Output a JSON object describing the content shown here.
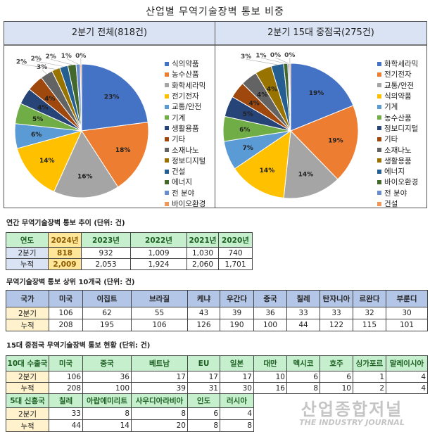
{
  "title": "산업별 무역기술장벽 통보 비중",
  "colors": [
    "#4472C4",
    "#ED7D31",
    "#A5A5A5",
    "#FFC000",
    "#5B9BD5",
    "#70AD47",
    "#264478",
    "#9E480E",
    "#636363",
    "#997300",
    "#255E91",
    "#43682B",
    "#698ED0",
    "#F1975A"
  ],
  "chart_data": [
    {
      "type": "pie",
      "title": "2분기 전체(818건)",
      "legend_position": "right",
      "unit": "%",
      "categories": [
        "식의약품",
        "농수산품",
        "화학세라믹",
        "전기전자",
        "교통/안전",
        "기계",
        "생활용품",
        "기타",
        "소재나노",
        "정보디지털",
        "건설",
        "에너지",
        "전 분야",
        "바이오환경"
      ],
      "values": [
        23,
        18,
        16,
        14,
        6,
        5,
        4,
        4,
        3,
        2,
        2,
        2,
        1,
        0
      ]
    },
    {
      "type": "pie",
      "title": "2분기 15대 중점국(275건)",
      "legend_position": "right",
      "unit": "%",
      "categories": [
        "화학세라믹",
        "전기전자",
        "교통/안전",
        "식의약품",
        "기계",
        "농수산품",
        "정보디지털",
        "기타",
        "소재나노",
        "생활용품",
        "에너지",
        "바이오환경",
        "전 분야",
        "건설"
      ],
      "values": [
        19,
        19,
        14,
        14,
        7,
        6,
        5,
        4,
        4,
        4,
        3,
        1,
        0,
        0
      ]
    }
  ],
  "annual": {
    "title": "연간 무역기술장벽 통보 추이 (단위: 건)",
    "header": [
      "연도",
      "2024년",
      "2023년",
      "2022년",
      "2021년",
      "2020년"
    ],
    "rows": [
      [
        "2분기",
        "818",
        "932",
        "1,009",
        "1,030",
        "740"
      ],
      [
        "누적",
        "2,009",
        "2,053",
        "1,924",
        "2,060",
        "1,701"
      ]
    ]
  },
  "top10": {
    "title": "무역기술장벽 통보 상위 10개국 (단위: 건)",
    "header": [
      "국가",
      "미국",
      "이집트",
      "브라질",
      "케냐",
      "우간다",
      "중국",
      "칠레",
      "탄자니아",
      "르완다",
      "부룬디"
    ],
    "rows": [
      [
        "2분기",
        "106",
        "62",
        "55",
        "43",
        "39",
        "36",
        "33",
        "33",
        "32",
        "30"
      ],
      [
        "누적",
        "208",
        "195",
        "106",
        "126",
        "190",
        "100",
        "44",
        "122",
        "115",
        "101"
      ]
    ]
  },
  "focus": {
    "title": "15대 중점국 무역기술장벽 통보 현황 (단위: 건)",
    "header1": [
      "10대 수출국",
      "미국",
      "중국",
      "베트남",
      "EU",
      "일본",
      "대만",
      "멕시코",
      "호주",
      "싱가포르",
      "말레이시아"
    ],
    "rows1": [
      [
        "2분기",
        "106",
        "36",
        "17",
        "17",
        "17",
        "10",
        "6",
        "6",
        "1",
        "4"
      ],
      [
        "누적",
        "208",
        "100",
        "39",
        "31",
        "30",
        "16",
        "8",
        "10",
        "2",
        "4"
      ]
    ],
    "header2": [
      "5대 신흥국",
      "칠레",
      "아랍에미리트",
      "사우디아라비아",
      "인도",
      "러시아"
    ],
    "rows2": [
      [
        "2분기",
        "33",
        "8",
        "8",
        "6",
        "4"
      ],
      [
        "누적",
        "44",
        "14",
        "20",
        "8",
        "8"
      ]
    ]
  },
  "watermark": {
    "line1": "산업종합저널",
    "line2": "THE INDUSTRY JOURNAL"
  }
}
